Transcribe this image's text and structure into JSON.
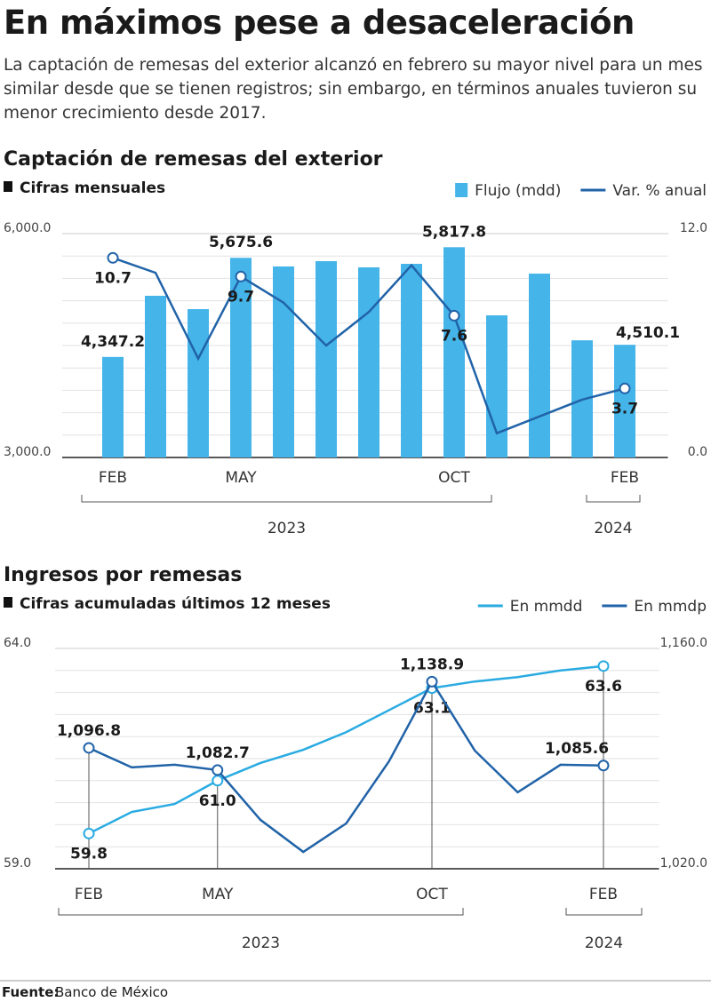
{
  "title": "En máximos pese a desaceleración",
  "subtitle": "La captación de remesas del exterior alcanzó en febrero su mayor nivel para un mes similar desde que se tienen registros; sin embargo, en términos anuales tuvieron su menor crecimiento desde 2017.",
  "source": {
    "label": "Fuente:",
    "text": "Banco de México"
  },
  "chart_data": [
    {
      "type": "bar",
      "title": "Captación de remesas del exterior",
      "subtitle": "Cifras mensuales",
      "categories": [
        "FEB",
        null,
        null,
        "MAY",
        null,
        null,
        null,
        null,
        "OCT",
        null,
        null,
        null,
        "FEB"
      ],
      "x_groups": [
        "2023",
        "2024"
      ],
      "ylim": [
        3000,
        6000
      ],
      "yticks": [
        {
          "value": 3000,
          "label": "3,000.0"
        },
        {
          "value": 6000,
          "label": "6,000.0"
        }
      ],
      "y2lim": [
        0,
        12
      ],
      "y2ticks": [
        {
          "value": 0,
          "label": "0.0"
        },
        {
          "value": 12,
          "label": "12.0"
        }
      ],
      "grid": true,
      "series": [
        {
          "name": "Flujo (mdd)",
          "color": "#45b4e9",
          "values": [
            4347.2,
            5167,
            4988,
            5675.6,
            5560,
            5631,
            5548,
            5595,
            5817.8,
            4905,
            5464,
            4570,
            4510.1
          ],
          "value_labels": [
            "4,347.2",
            null,
            null,
            "5,675.6",
            null,
            null,
            null,
            null,
            "5,817.8",
            null,
            null,
            null,
            "4,510.1"
          ]
        },
        {
          "name": "Var. % anual",
          "color": "#2163a8",
          "type": "line",
          "axis": "y2",
          "values": [
            10.7,
            9.9,
            5.3,
            9.7,
            8.3,
            6.0,
            7.8,
            10.3,
            7.6,
            1.3,
            2.2,
            3.1,
            3.7
          ],
          "value_labels": [
            "10.7",
            null,
            null,
            "9.7",
            null,
            null,
            null,
            null,
            "7.6",
            null,
            null,
            null,
            "3.7"
          ]
        }
      ]
    },
    {
      "type": "line",
      "title": "Ingresos por remesas",
      "subtitle": "Cifras acumuladas últimos 12 meses",
      "categories": [
        "FEB",
        null,
        null,
        "MAY",
        null,
        null,
        null,
        null,
        "OCT",
        null,
        null,
        null,
        "FEB"
      ],
      "x_groups": [
        "2023",
        "2024"
      ],
      "ylim": [
        59,
        64
      ],
      "yticks": [
        {
          "value": 59,
          "label": "59.0"
        },
        {
          "value": 64,
          "label": "64.0"
        }
      ],
      "y2lim": [
        1020,
        1160
      ],
      "y2ticks": [
        {
          "value": 1020,
          "label": "1,020.0"
        },
        {
          "value": 1160,
          "label": "1,160.0"
        }
      ],
      "grid": true,
      "series": [
        {
          "name": "En mmdd",
          "color": "#29abe2",
          "values": [
            59.8,
            60.29,
            60.47,
            61.0,
            61.4,
            61.7,
            62.1,
            62.6,
            63.1,
            63.25,
            63.35,
            63.5,
            63.6
          ],
          "value_labels": [
            "59.8",
            null,
            null,
            "61.0",
            null,
            null,
            null,
            null,
            "63.1",
            null,
            null,
            null,
            "63.6"
          ]
        },
        {
          "name": "En mmdp",
          "color": "#2163a8",
          "axis": "y2",
          "values": [
            1096.8,
            1084.4,
            1086.1,
            1082.7,
            1051.1,
            1030.7,
            1048.8,
            1088.3,
            1138.9,
            1095.1,
            1068.6,
            1086.1,
            1085.6
          ],
          "value_labels": [
            "1,096.8",
            null,
            null,
            "1,082.7",
            null,
            null,
            null,
            null,
            "1,138.9",
            null,
            null,
            null,
            "1,085.6"
          ]
        }
      ]
    }
  ]
}
